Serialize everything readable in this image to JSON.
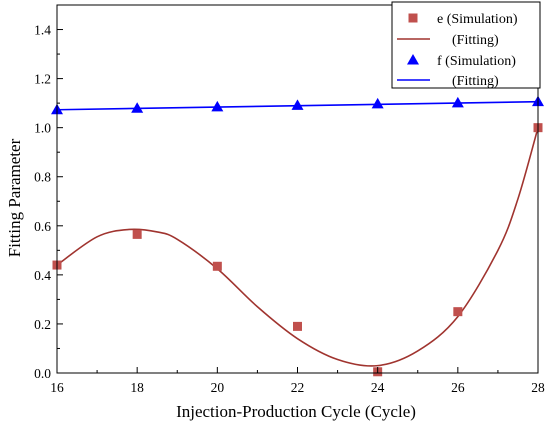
{
  "chart_data": {
    "type": "scatter",
    "xlabel": "Injection-Production Cycle (Cycle)",
    "ylabel": "Fitting Parameter",
    "xlim": [
      16,
      28
    ],
    "ylim": [
      0,
      1.5
    ],
    "xticks": [
      16,
      18,
      20,
      22,
      24,
      26,
      28
    ],
    "yticks": [
      0.0,
      0.2,
      0.4,
      0.6,
      0.8,
      1.0,
      1.2,
      1.4
    ],
    "xtick_labels": [
      "16",
      "18",
      "20",
      "22",
      "24",
      "26",
      "28"
    ],
    "ytick_labels": [
      "0.0",
      "0.2",
      "0.4",
      "0.6",
      "0.8",
      "1.0",
      "1.2",
      "1.4"
    ],
    "legend_position": "top-right",
    "grid": false,
    "series": [
      {
        "name": "e (Simulation)",
        "kind": "markers",
        "marker": "square",
        "color": "#c0504d",
        "x": [
          16,
          18,
          20,
          22,
          24,
          26,
          28
        ],
        "y": [
          0.44,
          0.565,
          0.435,
          0.19,
          0.005,
          0.25,
          1.0
        ]
      },
      {
        "name": "(Fitting)",
        "kind": "line",
        "color": "#a0342f",
        "x": [
          16,
          17,
          17.8,
          18.5,
          19,
          20,
          21,
          22,
          23,
          24,
          25,
          26,
          27,
          27.5,
          28
        ],
        "y": [
          0.44,
          0.555,
          0.585,
          0.575,
          0.545,
          0.425,
          0.27,
          0.14,
          0.055,
          0.03,
          0.09,
          0.23,
          0.5,
          0.71,
          1.0
        ]
      },
      {
        "name": "f (Simulation)",
        "kind": "markers",
        "marker": "triangle",
        "color": "#0000ff",
        "x": [
          16,
          18,
          20,
          22,
          24,
          26,
          28
        ],
        "y": [
          1.073,
          1.079,
          1.085,
          1.091,
          1.097,
          1.101,
          1.106
        ]
      },
      {
        "name": "(Fitting)",
        "kind": "line",
        "color": "#0000ff",
        "x": [
          16,
          28
        ],
        "y": [
          1.073,
          1.106
        ]
      }
    ]
  }
}
